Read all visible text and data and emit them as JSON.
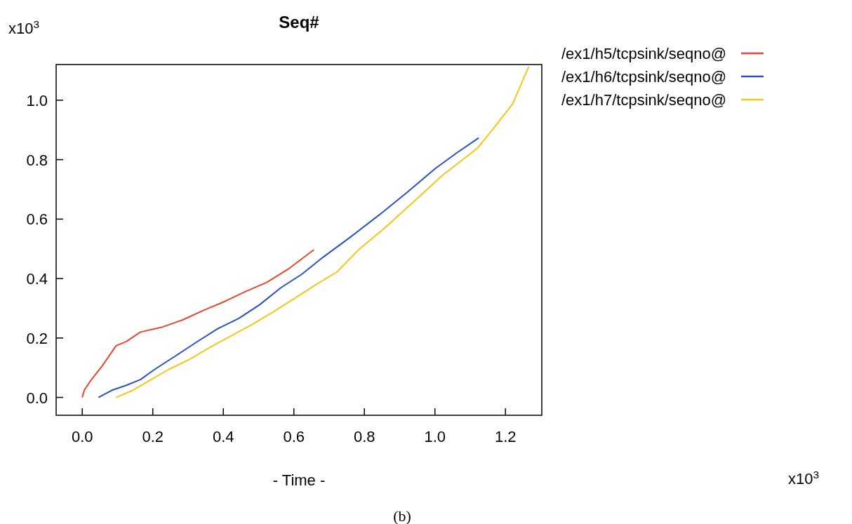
{
  "chart_data": {
    "type": "line",
    "title": "Seq#",
    "xlabel": "- Time -",
    "xlim": [
      -0.074,
      1.303
    ],
    "ylim": [
      -0.06,
      1.12
    ],
    "xticks": [
      {
        "value": 0,
        "label": "0.0"
      },
      {
        "value": 0.2,
        "label": "0.2"
      },
      {
        "value": 0.4,
        "label": "0.4"
      },
      {
        "value": 0.6,
        "label": "0.6"
      },
      {
        "value": 0.8,
        "label": "0.8"
      },
      {
        "value": 1.0,
        "label": "1.0"
      },
      {
        "value": 1.2,
        "label": "1.2"
      }
    ],
    "yticks": [
      {
        "value": 0,
        "label": "0.0"
      },
      {
        "value": 0.2,
        "label": "0.2"
      },
      {
        "value": 0.4,
        "label": "0.4"
      },
      {
        "value": 0.6,
        "label": "0.6"
      },
      {
        "value": 0.8,
        "label": "0.8"
      },
      {
        "value": 1.0,
        "label": "1.0"
      }
    ],
    "grid": false,
    "legend": "right",
    "marker": "none",
    "line_style": "solid",
    "annotations": [
      "x10$^{3}$",
      "x10$^{3}$",
      "(b)"
    ],
    "series": [
      {
        "name": "/ex1/h5/tcpsink/seqno@",
        "color": "#e8462a",
        "x": [
          0.0,
          0.006,
          0.026,
          0.056,
          0.096,
          0.125,
          0.165,
          0.225,
          0.285,
          0.344,
          0.404,
          0.464,
          0.523,
          0.583,
          0.657
        ],
        "values": [
          0.0,
          0.025,
          0.06,
          0.105,
          0.174,
          0.188,
          0.22,
          0.236,
          0.261,
          0.293,
          0.323,
          0.357,
          0.387,
          0.431,
          0.497
        ]
      },
      {
        "name": "/ex1/h6/tcpsink/seqno@",
        "color": "#2a52be",
        "x": [
          0.046,
          0.086,
          0.125,
          0.165,
          0.205,
          0.265,
          0.324,
          0.384,
          0.444,
          0.503,
          0.563,
          0.623,
          0.683,
          0.762,
          0.842,
          0.921,
          1.001,
          1.061,
          1.124
        ],
        "values": [
          0.0,
          0.025,
          0.041,
          0.06,
          0.094,
          0.14,
          0.186,
          0.231,
          0.266,
          0.312,
          0.369,
          0.415,
          0.472,
          0.541,
          0.614,
          0.69,
          0.77,
          0.822,
          0.873
        ]
      },
      {
        "name": "/ex1/h7/tcpsink/seqno@",
        "color": "#f5c518",
        "x": [
          0.096,
          0.145,
          0.195,
          0.245,
          0.304,
          0.364,
          0.424,
          0.484,
          0.543,
          0.603,
          0.663,
          0.722,
          0.782,
          0.862,
          0.941,
          1.021,
          1.12,
          1.16,
          1.22,
          1.266
        ],
        "values": [
          0.0,
          0.025,
          0.06,
          0.094,
          0.128,
          0.17,
          0.208,
          0.247,
          0.289,
          0.334,
          0.38,
          0.422,
          0.495,
          0.575,
          0.66,
          0.747,
          0.838,
          0.896,
          0.987,
          1.113
        ]
      }
    ]
  }
}
